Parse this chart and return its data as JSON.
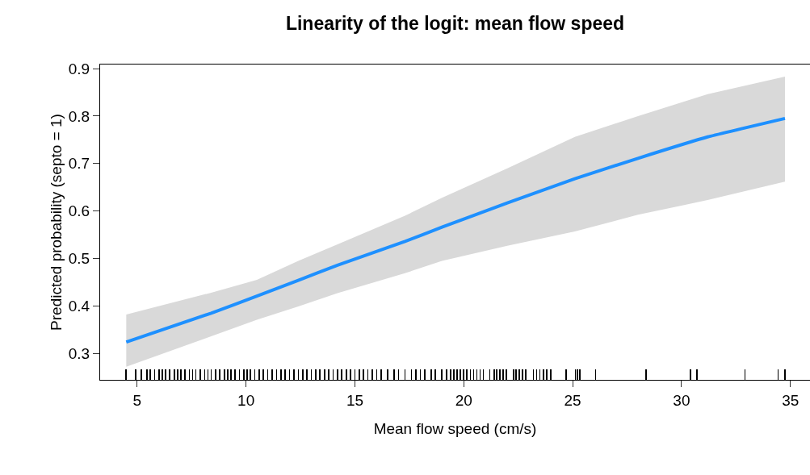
{
  "chart_data": {
    "type": "line",
    "title": "Linearity of the logit: mean flow speed",
    "xlabel": "Mean flow speed (cm/s)",
    "ylabel": "Predicted probability (septo = 1)",
    "xlim": [
      3.3,
      35.9
    ],
    "xticks": [
      5,
      10,
      15,
      20,
      25,
      30,
      35
    ],
    "ylim": [
      0.2445,
      0.9085
    ],
    "yticks": [
      0.3,
      0.4,
      0.5,
      0.6,
      0.7,
      0.8,
      0.9
    ],
    "grid": false,
    "marker": "none",
    "line_style": "solid",
    "series": [
      {
        "color": "#1e90ff",
        "x": [
          4.5,
          8.4,
          10.5,
          12.4,
          14.2,
          17.3,
          19.0,
          22.0,
          25.1,
          28.0,
          31.2,
          34.75
        ],
        "values": [
          0.324,
          0.385,
          0.421,
          0.454,
          0.486,
          0.536,
          0.566,
          0.617,
          0.668,
          0.711,
          0.756,
          0.795
        ],
        "lower": [
          0.272,
          0.336,
          0.371,
          0.399,
          0.427,
          0.469,
          0.495,
          0.527,
          0.557,
          0.592,
          0.623,
          0.662
        ],
        "upper": [
          0.382,
          0.428,
          0.455,
          0.495,
          0.53,
          0.59,
          0.628,
          0.69,
          0.756,
          0.8,
          0.846,
          0.883
        ]
      },
      {
        "type": "bar",
        "color": "#000000",
        "x": [
          4.49,
          4.94,
          5.2,
          5.45,
          5.6,
          5.8,
          6.0,
          6.15,
          6.3,
          6.5,
          6.7,
          6.85,
          7.0,
          7.2,
          7.4,
          7.55,
          7.7,
          7.9,
          8.1,
          8.25,
          8.4,
          8.6,
          8.8,
          9.0,
          9.15,
          9.3,
          9.5,
          9.7,
          9.9,
          10.05,
          10.2,
          10.4,
          10.6,
          10.8,
          11.0,
          11.2,
          11.4,
          11.6,
          11.8,
          12.0,
          12.2,
          12.4,
          12.6,
          12.8,
          13.0,
          13.2,
          13.4,
          13.6,
          13.8,
          14.0,
          14.2,
          14.4,
          14.6,
          14.8,
          15.0,
          15.2,
          15.4,
          15.6,
          15.8,
          16.0,
          16.2,
          16.5,
          16.8,
          17.0,
          17.3,
          17.6,
          17.8,
          18.0,
          18.2,
          18.5,
          18.7,
          19.0,
          19.2,
          19.4,
          19.55,
          19.7,
          19.85,
          20.0,
          20.15,
          20.3,
          20.45,
          20.6,
          20.75,
          20.9,
          21.2,
          21.4,
          21.5,
          21.65,
          21.8,
          21.95,
          22.3,
          22.4,
          22.55,
          22.7,
          22.85,
          23.2,
          23.35,
          23.5,
          23.65,
          23.8,
          24.0,
          24.69,
          25.12,
          25.22,
          25.32,
          26.05,
          28.38,
          30.4,
          30.71,
          32.92,
          34.44,
          34.75
        ],
        "base": [
          0.2445,
          0.2445,
          0.2445,
          0.2445,
          0.2445,
          0.2445,
          0.2445,
          0.2445,
          0.2445,
          0.2445,
          0.2445,
          0.2445,
          0.2445,
          0.2445,
          0.2445,
          0.2445,
          0.2445,
          0.2445,
          0.2445,
          0.2445,
          0.2445,
          0.2445,
          0.2445,
          0.2445,
          0.2445,
          0.2445,
          0.2445,
          0.2445,
          0.2445,
          0.2445,
          0.2445,
          0.2445,
          0.2445,
          0.2445,
          0.2445,
          0.2445,
          0.2445,
          0.2445,
          0.2445,
          0.2445,
          0.2445,
          0.2445,
          0.2445,
          0.2445,
          0.2445,
          0.2445,
          0.2445,
          0.2445,
          0.2445,
          0.2445,
          0.2445,
          0.2445,
          0.2445,
          0.2445,
          0.2445,
          0.2445,
          0.2445,
          0.2445,
          0.2445,
          0.2445,
          0.2445,
          0.2445,
          0.2445,
          0.2445,
          0.2445,
          0.2445,
          0.2445,
          0.2445,
          0.2445,
          0.2445,
          0.2445,
          0.2445,
          0.2445,
          0.2445,
          0.2445,
          0.2445,
          0.2445,
          0.2445,
          0.2445,
          0.2445,
          0.2445,
          0.2445,
          0.2445,
          0.2445,
          0.2445,
          0.2445,
          0.2445,
          0.2445,
          0.2445,
          0.2445,
          0.2445,
          0.2445,
          0.2445,
          0.2445,
          0.2445,
          0.2445,
          0.2445,
          0.2445,
          0.2445,
          0.2445,
          0.2445,
          0.2445,
          0.2445,
          0.2445,
          0.2445,
          0.2445,
          0.2445,
          0.2445,
          0.2445,
          0.2445,
          0.2445,
          0.2445
        ],
        "values": [
          0.022,
          0.022,
          0.022,
          0.022,
          0.022,
          0.022,
          0.022,
          0.022,
          0.022,
          0.022,
          0.022,
          0.022,
          0.022,
          0.022,
          0.022,
          0.022,
          0.022,
          0.022,
          0.022,
          0.022,
          0.022,
          0.022,
          0.022,
          0.022,
          0.022,
          0.022,
          0.022,
          0.022,
          0.022,
          0.022,
          0.022,
          0.022,
          0.022,
          0.022,
          0.022,
          0.022,
          0.022,
          0.022,
          0.022,
          0.022,
          0.022,
          0.022,
          0.022,
          0.022,
          0.022,
          0.022,
          0.022,
          0.022,
          0.022,
          0.022,
          0.022,
          0.022,
          0.022,
          0.022,
          0.022,
          0.022,
          0.022,
          0.022,
          0.022,
          0.022,
          0.022,
          0.022,
          0.022,
          0.022,
          0.022,
          0.022,
          0.022,
          0.022,
          0.022,
          0.022,
          0.022,
          0.022,
          0.022,
          0.022,
          0.022,
          0.022,
          0.022,
          0.022,
          0.022,
          0.022,
          0.022,
          0.022,
          0.022,
          0.022,
          0.022,
          0.022,
          0.022,
          0.022,
          0.022,
          0.022,
          0.022,
          0.022,
          0.022,
          0.022,
          0.022,
          0.022,
          0.022,
          0.022,
          0.022,
          0.022,
          0.022,
          0.022,
          0.022,
          0.022,
          0.022,
          0.022,
          0.022,
          0.022,
          0.022,
          0.022,
          0.022,
          0.022
        ]
      }
    ]
  }
}
